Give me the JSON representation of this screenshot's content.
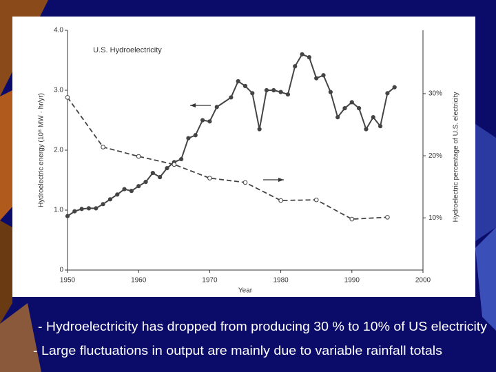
{
  "chart_data": {
    "type": "line",
    "title": "U.S. Hydroelectricity",
    "xlabel": "Year",
    "ylabel": "Hydroelectric energy (10⁸ MW · hr/yr)",
    "y2label": "Hydroelectric percentage of U.S. electricity",
    "xlim": [
      1950,
      2000
    ],
    "xticks": [
      1950,
      1960,
      1970,
      1980,
      1990,
      2000
    ],
    "ylim": [
      0,
      4
    ],
    "yticks": [
      0,
      {
        "value": 1,
        "label": "1.0"
      },
      {
        "value": 2,
        "label": "2.0"
      },
      {
        "value": 3,
        "label": "3.0"
      },
      {
        "value": 4,
        "label": "4.0"
      }
    ],
    "y2lim": [
      1.6,
      40.2
    ],
    "y2ticks": [
      {
        "value": 10,
        "label": "10%"
      },
      {
        "value": 20,
        "label": "20%"
      },
      {
        "value": 30,
        "label": "30%"
      }
    ],
    "series": [
      {
        "color": "#444444",
        "line_style": "solid",
        "marker_fill": true,
        "x": [
          1950,
          1951,
          1952,
          1953,
          1954,
          1955,
          1956,
          1957,
          1958,
          1959,
          1960,
          1961,
          1962,
          1963,
          1964,
          1965,
          1966,
          1967,
          1968,
          1969,
          1970,
          1971,
          1973,
          1974,
          1975,
          1976,
          1977,
          1978,
          1979,
          1980,
          1981,
          1982,
          1983,
          1984,
          1985,
          1986,
          1987,
          1988,
          1989,
          1990,
          1991,
          1992,
          1993,
          1994,
          1995,
          1996
        ],
        "values": [
          0.9,
          0.98,
          1.02,
          1.03,
          1.03,
          1.1,
          1.18,
          1.26,
          1.35,
          1.32,
          1.4,
          1.47,
          1.62,
          1.55,
          1.7,
          1.8,
          1.85,
          2.2,
          2.25,
          2.5,
          2.48,
          2.72,
          2.88,
          3.15,
          3.07,
          2.95,
          2.35,
          3.0,
          3.0,
          2.97,
          2.93,
          3.4,
          3.6,
          3.55,
          3.2,
          3.25,
          2.97,
          2.55,
          2.7,
          2.8,
          2.7,
          2.35,
          2.55,
          2.4,
          2.95,
          3.05
        ]
      },
      {
        "color": "#444444",
        "line_style": "dashed",
        "marker_fill": false,
        "axis": "y2",
        "x": [
          1950,
          1955,
          1960,
          1965,
          1970,
          1975,
          1980,
          1985,
          1990,
          1995
        ],
        "values": [
          29.4,
          21.4,
          19.9,
          18.6,
          16.4,
          15.7,
          12.8,
          12.9,
          9.8,
          10.1
        ]
      }
    ]
  },
  "bullets": [
    "- Hydroelectricity has dropped from producing 30 % to 10% of US electricity",
    "- Large fluctuations in output are mainly due to variable rainfall totals"
  ]
}
